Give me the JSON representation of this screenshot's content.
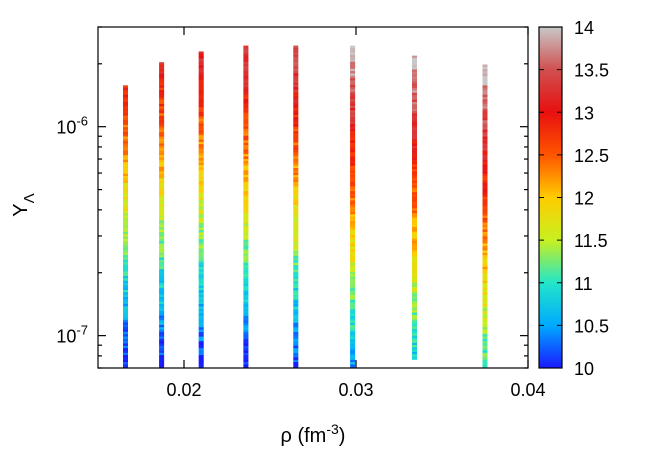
{
  "chart_data": {
    "type": "scatter",
    "xlabel": {
      "base": "ρ (fm",
      "sup": "-3",
      "tail": ")"
    },
    "ylabel": {
      "base": "Y",
      "sub": "Λ"
    },
    "xlim": [
      0.015,
      0.04
    ],
    "ylim": [
      7e-08,
      3e-06
    ],
    "y_scale": "log",
    "x_ticks": [
      0.02,
      0.03,
      0.04
    ],
    "x_tick_labels": [
      "0.02",
      "0.03",
      "0.04"
    ],
    "y_ticks": [
      1e-07,
      1e-06
    ],
    "y_tick_labels": [
      {
        "base": "10",
        "sup": "-7"
      },
      {
        "base": "10",
        "sup": "-6"
      }
    ],
    "colorbar": {
      "range": [
        10,
        14
      ],
      "ticks": [
        10,
        10.5,
        11,
        11.5,
        12,
        12.5,
        13,
        13.5,
        14
      ],
      "tick_labels": [
        "10",
        "10.5",
        "11",
        "11.5",
        "12",
        "12.5",
        "13",
        "13.5",
        "14"
      ],
      "colormap": [
        "#1a1aff",
        "#00aaff",
        "#22e6c8",
        "#c8f020",
        "#ffcc00",
        "#ff5500",
        "#e81010",
        "#d05050",
        "#c8c8c8"
      ]
    },
    "series": [
      {
        "x": 0.0166,
        "ymin": 7e-08,
        "ymax": 1.55e-06,
        "cmin": 10.0,
        "cmax": 12.9
      },
      {
        "x": 0.0187,
        "ymin": 7e-08,
        "ymax": 2e-06,
        "cmin": 10.0,
        "cmax": 13.1
      },
      {
        "x": 0.021,
        "ymin": 7e-08,
        "ymax": 2.25e-06,
        "cmin": 10.0,
        "cmax": 13.2
      },
      {
        "x": 0.0236,
        "ymin": 7e-08,
        "ymax": 2.4e-06,
        "cmin": 10.0,
        "cmax": 13.5
      },
      {
        "x": 0.0265,
        "ymin": 7e-08,
        "ymax": 2.4e-06,
        "cmin": 10.1,
        "cmax": 13.6
      },
      {
        "x": 0.0298,
        "ymin": 7e-08,
        "ymax": 2.4e-06,
        "cmin": 10.5,
        "cmax": 14.0
      },
      {
        "x": 0.0334,
        "ymin": 7.8e-08,
        "ymax": 2.15e-06,
        "cmin": 10.8,
        "cmax": 14.0
      },
      {
        "x": 0.0375,
        "ymin": 7e-08,
        "ymax": 1.95e-06,
        "cmin": 11.0,
        "cmax": 14.0
      }
    ]
  }
}
